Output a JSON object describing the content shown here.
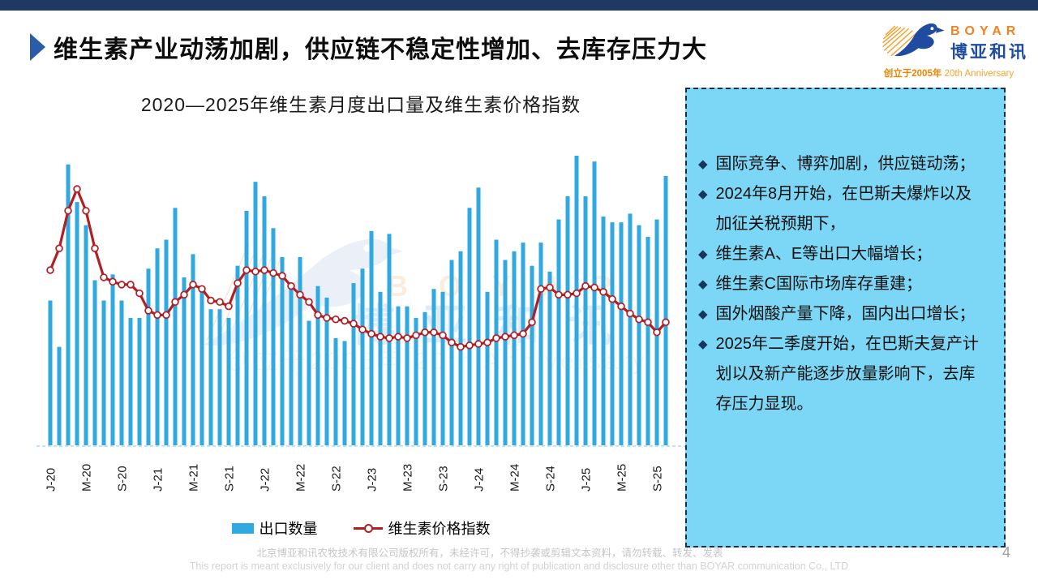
{
  "header": {
    "title": "维生素产业动荡加剧，供应链不稳定性增加、去库存压力大"
  },
  "logo": {
    "brand_en": "BOYAR",
    "brand_cn": "博亚和讯",
    "tagline_cn": "创立于2005年",
    "tagline_en": "20th Anniversary"
  },
  "chart_data": {
    "type": "combo",
    "title": "2020—2025年维生素月度出口量及维生素价格指数",
    "x_unit": "month",
    "x_start": "2020-01",
    "x_end": "2025-10",
    "n_points": 70,
    "x_tick_labels": [
      "J-20",
      "M-20",
      "S-20",
      "J-21",
      "M-21",
      "S-21",
      "J-22",
      "M-22",
      "S-22",
      "J-23",
      "M-23",
      "S-23",
      "J-24",
      "M-24",
      "S-24",
      "J-25",
      "M-25",
      "S-25"
    ],
    "x_tick_interval": 4,
    "ylim": [
      0,
      105
    ],
    "y_axis_visible": false,
    "grid": false,
    "legend_position": "bottom",
    "units": "relative scale 0-100 (no numeric y-axis shown in source)",
    "series": [
      {
        "name": "出口数量",
        "type": "bar",
        "color": "#2FA9DF",
        "values": [
          50,
          34,
          97,
          84,
          76,
          57,
          50,
          59,
          50,
          44,
          44,
          61,
          68,
          71,
          82,
          58,
          66,
          55,
          47,
          47,
          44,
          62,
          81,
          91,
          86,
          75,
          65,
          55,
          65,
          43,
          55,
          51,
          37,
          36,
          56,
          61,
          74,
          53,
          73,
          48,
          48,
          44,
          46,
          54,
          53,
          64,
          67,
          82,
          89,
          53,
          71,
          64,
          67,
          70,
          62,
          70,
          60,
          78,
          86,
          100,
          86,
          98,
          79,
          77,
          77,
          80,
          76,
          72,
          78,
          93
        ]
      },
      {
        "name": "维生素价格指数",
        "type": "line",
        "color": "#B11E23",
        "marker": "circle-open",
        "values": [
          60.5,
          68,
          81,
          88.5,
          81,
          68,
          58,
          56.5,
          55.5,
          55.5,
          52.5,
          46.5,
          45,
          45,
          49.5,
          52,
          55.5,
          54,
          50,
          49.5,
          48,
          56,
          60.5,
          60,
          60.5,
          59.5,
          58.5,
          55,
          52,
          49.5,
          45,
          44,
          43.5,
          43,
          42,
          40,
          38.5,
          37.5,
          37,
          37.5,
          37,
          38,
          39,
          39,
          38,
          35.5,
          34,
          34.5,
          35,
          35.5,
          37,
          37.5,
          38,
          38.5,
          42.5,
          54,
          54.5,
          52,
          52,
          52.5,
          55,
          54.5,
          53,
          50.5,
          48,
          45.5,
          43.5,
          42.5,
          39,
          42.5
        ]
      }
    ]
  },
  "watermark": {
    "text_en": "B O Y A R",
    "text_cn": "博 亚 和 讯",
    "tagline": "创立于2005年 20th Anniversary"
  },
  "panel": {
    "bullets": [
      "国际竞争、博弈加剧，供应链动荡；",
      "2024年8月开始，在巴斯夫爆炸以及加征关税预期下，",
      "维生素A、E等出口大幅增长；",
      "维生素C国际市场库存重建；",
      "国外烟酸产量下降，国内出口增长；",
      "2025年二季度开始，在巴斯夫复产计划以及新产能逐步放量影响下，去库存压力显现。"
    ]
  },
  "footer": {
    "line1": "北京博亚和讯农牧技术有限公司版权所有，未经许可，不得抄袭或剪辑文本资料，请勿转载、转发、发表",
    "line2": "This report is meant exclusively for our client and does not carry any right of publication and disclosure other than BOYAR communication Co., LTD",
    "page_number": "4"
  },
  "colors": {
    "top_strip_navy": "#1F3864",
    "title_arrow_blue": "#2A5CAA",
    "bar_blue": "#2FA9DF",
    "line_red": "#B11E23",
    "panel_bg": "#7BD7F5",
    "panel_border": "#1B2B4D",
    "bullet_diamond": "#17365D",
    "brand_orange": "#F58220",
    "brand_blue": "#1F4CA0",
    "footer_gray": "#C6C6C6"
  }
}
